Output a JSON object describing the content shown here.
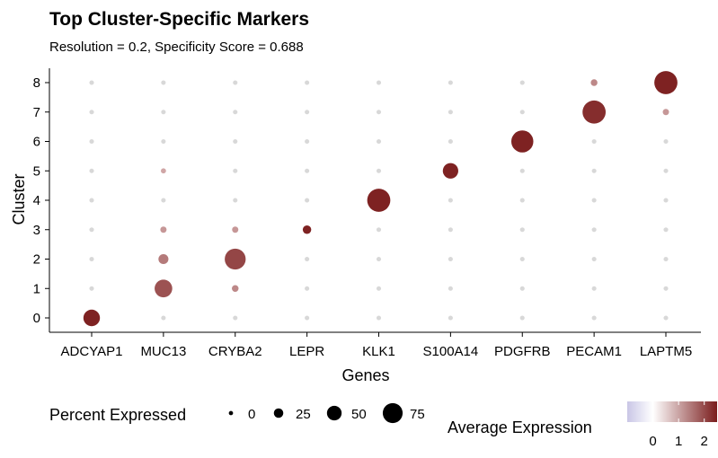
{
  "chart_data": {
    "type": "dotplot",
    "title": "Top Cluster-Specific Markers",
    "subtitle": "Resolution = 0.2, Specificity Score = 0.688",
    "xlabel": "Genes",
    "ylabel": "Cluster",
    "genes": [
      "ADCYAP1",
      "MUC13",
      "CRYBA2",
      "LEPR",
      "KLK1",
      "S100A14",
      "PDGFRB",
      "PECAM1",
      "LAPTM5"
    ],
    "clusters": [
      "0",
      "1",
      "2",
      "3",
      "4",
      "5",
      "6",
      "7",
      "8"
    ],
    "points": [
      {
        "gene": "ADCYAP1",
        "cluster": "0",
        "pct": 55,
        "avg": 2.4
      },
      {
        "gene": "ADCYAP1",
        "cluster": "1",
        "pct": 0.5,
        "avg": 0
      },
      {
        "gene": "ADCYAP1",
        "cluster": "2",
        "pct": 0.5,
        "avg": 0
      },
      {
        "gene": "ADCYAP1",
        "cluster": "3",
        "pct": 0.5,
        "avg": 0
      },
      {
        "gene": "ADCYAP1",
        "cluster": "4",
        "pct": 0.5,
        "avg": 0
      },
      {
        "gene": "ADCYAP1",
        "cluster": "5",
        "pct": 0.5,
        "avg": 0
      },
      {
        "gene": "ADCYAP1",
        "cluster": "6",
        "pct": 0.5,
        "avg": 0
      },
      {
        "gene": "ADCYAP1",
        "cluster": "7",
        "pct": 0.5,
        "avg": 0
      },
      {
        "gene": "ADCYAP1",
        "cluster": "8",
        "pct": 0.5,
        "avg": 0
      },
      {
        "gene": "MUC13",
        "cluster": "0",
        "pct": 0.5,
        "avg": 0
      },
      {
        "gene": "MUC13",
        "cluster": "1",
        "pct": 60,
        "avg": 1.6
      },
      {
        "gene": "MUC13",
        "cluster": "2",
        "pct": 25,
        "avg": 1.0
      },
      {
        "gene": "MUC13",
        "cluster": "3",
        "pct": 8,
        "avg": 0.6
      },
      {
        "gene": "MUC13",
        "cluster": "4",
        "pct": 0.5,
        "avg": 0
      },
      {
        "gene": "MUC13",
        "cluster": "5",
        "pct": 3,
        "avg": 0.4
      },
      {
        "gene": "MUC13",
        "cluster": "6",
        "pct": 0.5,
        "avg": 0
      },
      {
        "gene": "MUC13",
        "cluster": "7",
        "pct": 0.5,
        "avg": 0
      },
      {
        "gene": "MUC13",
        "cluster": "8",
        "pct": 0.5,
        "avg": 0
      },
      {
        "gene": "CRYBA2",
        "cluster": "0",
        "pct": 0.5,
        "avg": 0
      },
      {
        "gene": "CRYBA2",
        "cluster": "1",
        "pct": 10,
        "avg": 0.8
      },
      {
        "gene": "CRYBA2",
        "cluster": "2",
        "pct": 75,
        "avg": 1.8
      },
      {
        "gene": "CRYBA2",
        "cluster": "3",
        "pct": 8,
        "avg": 0.6
      },
      {
        "gene": "CRYBA2",
        "cluster": "4",
        "pct": 0.5,
        "avg": 0
      },
      {
        "gene": "CRYBA2",
        "cluster": "5",
        "pct": 0.5,
        "avg": 0
      },
      {
        "gene": "CRYBA2",
        "cluster": "6",
        "pct": 0.5,
        "avg": 0
      },
      {
        "gene": "CRYBA2",
        "cluster": "7",
        "pct": 0.5,
        "avg": 0
      },
      {
        "gene": "CRYBA2",
        "cluster": "8",
        "pct": 0.5,
        "avg": 0
      },
      {
        "gene": "LEPR",
        "cluster": "0",
        "pct": 0.5,
        "avg": 0
      },
      {
        "gene": "LEPR",
        "cluster": "1",
        "pct": 0.5,
        "avg": 0
      },
      {
        "gene": "LEPR",
        "cluster": "2",
        "pct": 0.5,
        "avg": 0
      },
      {
        "gene": "LEPR",
        "cluster": "3",
        "pct": 18,
        "avg": 2.4
      },
      {
        "gene": "LEPR",
        "cluster": "4",
        "pct": 0.5,
        "avg": 0
      },
      {
        "gene": "LEPR",
        "cluster": "5",
        "pct": 0.5,
        "avg": 0
      },
      {
        "gene": "LEPR",
        "cluster": "6",
        "pct": 0.5,
        "avg": 0
      },
      {
        "gene": "LEPR",
        "cluster": "7",
        "pct": 0.5,
        "avg": 0
      },
      {
        "gene": "LEPR",
        "cluster": "8",
        "pct": 0.5,
        "avg": 0
      },
      {
        "gene": "KLK1",
        "cluster": "0",
        "pct": 0.5,
        "avg": 0
      },
      {
        "gene": "KLK1",
        "cluster": "1",
        "pct": 0.5,
        "avg": 0
      },
      {
        "gene": "KLK1",
        "cluster": "2",
        "pct": 0.5,
        "avg": 0
      },
      {
        "gene": "KLK1",
        "cluster": "3",
        "pct": 0.5,
        "avg": 0
      },
      {
        "gene": "KLK1",
        "cluster": "4",
        "pct": 85,
        "avg": 2.4
      },
      {
        "gene": "KLK1",
        "cluster": "5",
        "pct": 0.5,
        "avg": 0
      },
      {
        "gene": "KLK1",
        "cluster": "6",
        "pct": 0.5,
        "avg": 0
      },
      {
        "gene": "KLK1",
        "cluster": "7",
        "pct": 0.5,
        "avg": 0
      },
      {
        "gene": "KLK1",
        "cluster": "8",
        "pct": 0.5,
        "avg": 0
      },
      {
        "gene": "S100A14",
        "cluster": "0",
        "pct": 0.5,
        "avg": 0
      },
      {
        "gene": "S100A14",
        "cluster": "1",
        "pct": 0.5,
        "avg": 0
      },
      {
        "gene": "S100A14",
        "cluster": "2",
        "pct": 0.5,
        "avg": 0
      },
      {
        "gene": "S100A14",
        "cluster": "3",
        "pct": 0.5,
        "avg": 0
      },
      {
        "gene": "S100A14",
        "cluster": "4",
        "pct": 0.5,
        "avg": 0
      },
      {
        "gene": "S100A14",
        "cluster": "5",
        "pct": 50,
        "avg": 2.4
      },
      {
        "gene": "S100A14",
        "cluster": "6",
        "pct": 0.5,
        "avg": 0
      },
      {
        "gene": "S100A14",
        "cluster": "7",
        "pct": 0.5,
        "avg": 0
      },
      {
        "gene": "S100A14",
        "cluster": "8",
        "pct": 0.5,
        "avg": 0
      },
      {
        "gene": "PDGFRB",
        "cluster": "0",
        "pct": 0.5,
        "avg": 0
      },
      {
        "gene": "PDGFRB",
        "cluster": "1",
        "pct": 0.5,
        "avg": 0
      },
      {
        "gene": "PDGFRB",
        "cluster": "2",
        "pct": 0.5,
        "avg": 0
      },
      {
        "gene": "PDGFRB",
        "cluster": "3",
        "pct": 0.5,
        "avg": 0
      },
      {
        "gene": "PDGFRB",
        "cluster": "4",
        "pct": 0.5,
        "avg": 0
      },
      {
        "gene": "PDGFRB",
        "cluster": "5",
        "pct": 0.5,
        "avg": 0
      },
      {
        "gene": "PDGFRB",
        "cluster": "6",
        "pct": 80,
        "avg": 2.4
      },
      {
        "gene": "PDGFRB",
        "cluster": "7",
        "pct": 0.5,
        "avg": 0
      },
      {
        "gene": "PDGFRB",
        "cluster": "8",
        "pct": 0.5,
        "avg": 0
      },
      {
        "gene": "PECAM1",
        "cluster": "0",
        "pct": 0.5,
        "avg": 0
      },
      {
        "gene": "PECAM1",
        "cluster": "1",
        "pct": 0.5,
        "avg": 0
      },
      {
        "gene": "PECAM1",
        "cluster": "2",
        "pct": 0.5,
        "avg": 0
      },
      {
        "gene": "PECAM1",
        "cluster": "3",
        "pct": 0.5,
        "avg": 0
      },
      {
        "gene": "PECAM1",
        "cluster": "4",
        "pct": 0.5,
        "avg": 0
      },
      {
        "gene": "PECAM1",
        "cluster": "5",
        "pct": 0.5,
        "avg": 0
      },
      {
        "gene": "PECAM1",
        "cluster": "6",
        "pct": 0.5,
        "avg": 0
      },
      {
        "gene": "PECAM1",
        "cluster": "7",
        "pct": 85,
        "avg": 2.2
      },
      {
        "gene": "PECAM1",
        "cluster": "8",
        "pct": 10,
        "avg": 0.8
      },
      {
        "gene": "LAPTM5",
        "cluster": "0",
        "pct": 0.5,
        "avg": 0
      },
      {
        "gene": "LAPTM5",
        "cluster": "1",
        "pct": 0.5,
        "avg": 0
      },
      {
        "gene": "LAPTM5",
        "cluster": "2",
        "pct": 0.5,
        "avg": 0
      },
      {
        "gene": "LAPTM5",
        "cluster": "3",
        "pct": 0.5,
        "avg": 0
      },
      {
        "gene": "LAPTM5",
        "cluster": "4",
        "pct": 0.5,
        "avg": 0
      },
      {
        "gene": "LAPTM5",
        "cluster": "5",
        "pct": 0.5,
        "avg": 0
      },
      {
        "gene": "LAPTM5",
        "cluster": "6",
        "pct": 0.5,
        "avg": 0
      },
      {
        "gene": "LAPTM5",
        "cluster": "7",
        "pct": 8,
        "avg": 0.6
      },
      {
        "gene": "LAPTM5",
        "cluster": "8",
        "pct": 85,
        "avg": 2.4
      }
    ],
    "size_legend": {
      "title": "Percent Expressed",
      "values": [
        0,
        25,
        50,
        75
      ],
      "labels": [
        "0",
        "25",
        "50",
        "75"
      ]
    },
    "color_legend": {
      "title": "Average Expression",
      "range": [
        -1,
        2.5
      ],
      "ticks": [
        0,
        1,
        2
      ],
      "labels": [
        "0",
        "1",
        "2"
      ],
      "low_color": "#c9c6e6",
      "mid_color": "#ffffff",
      "high_color": "#7a1c1c"
    },
    "grid": false,
    "legend_position": "bottom"
  }
}
